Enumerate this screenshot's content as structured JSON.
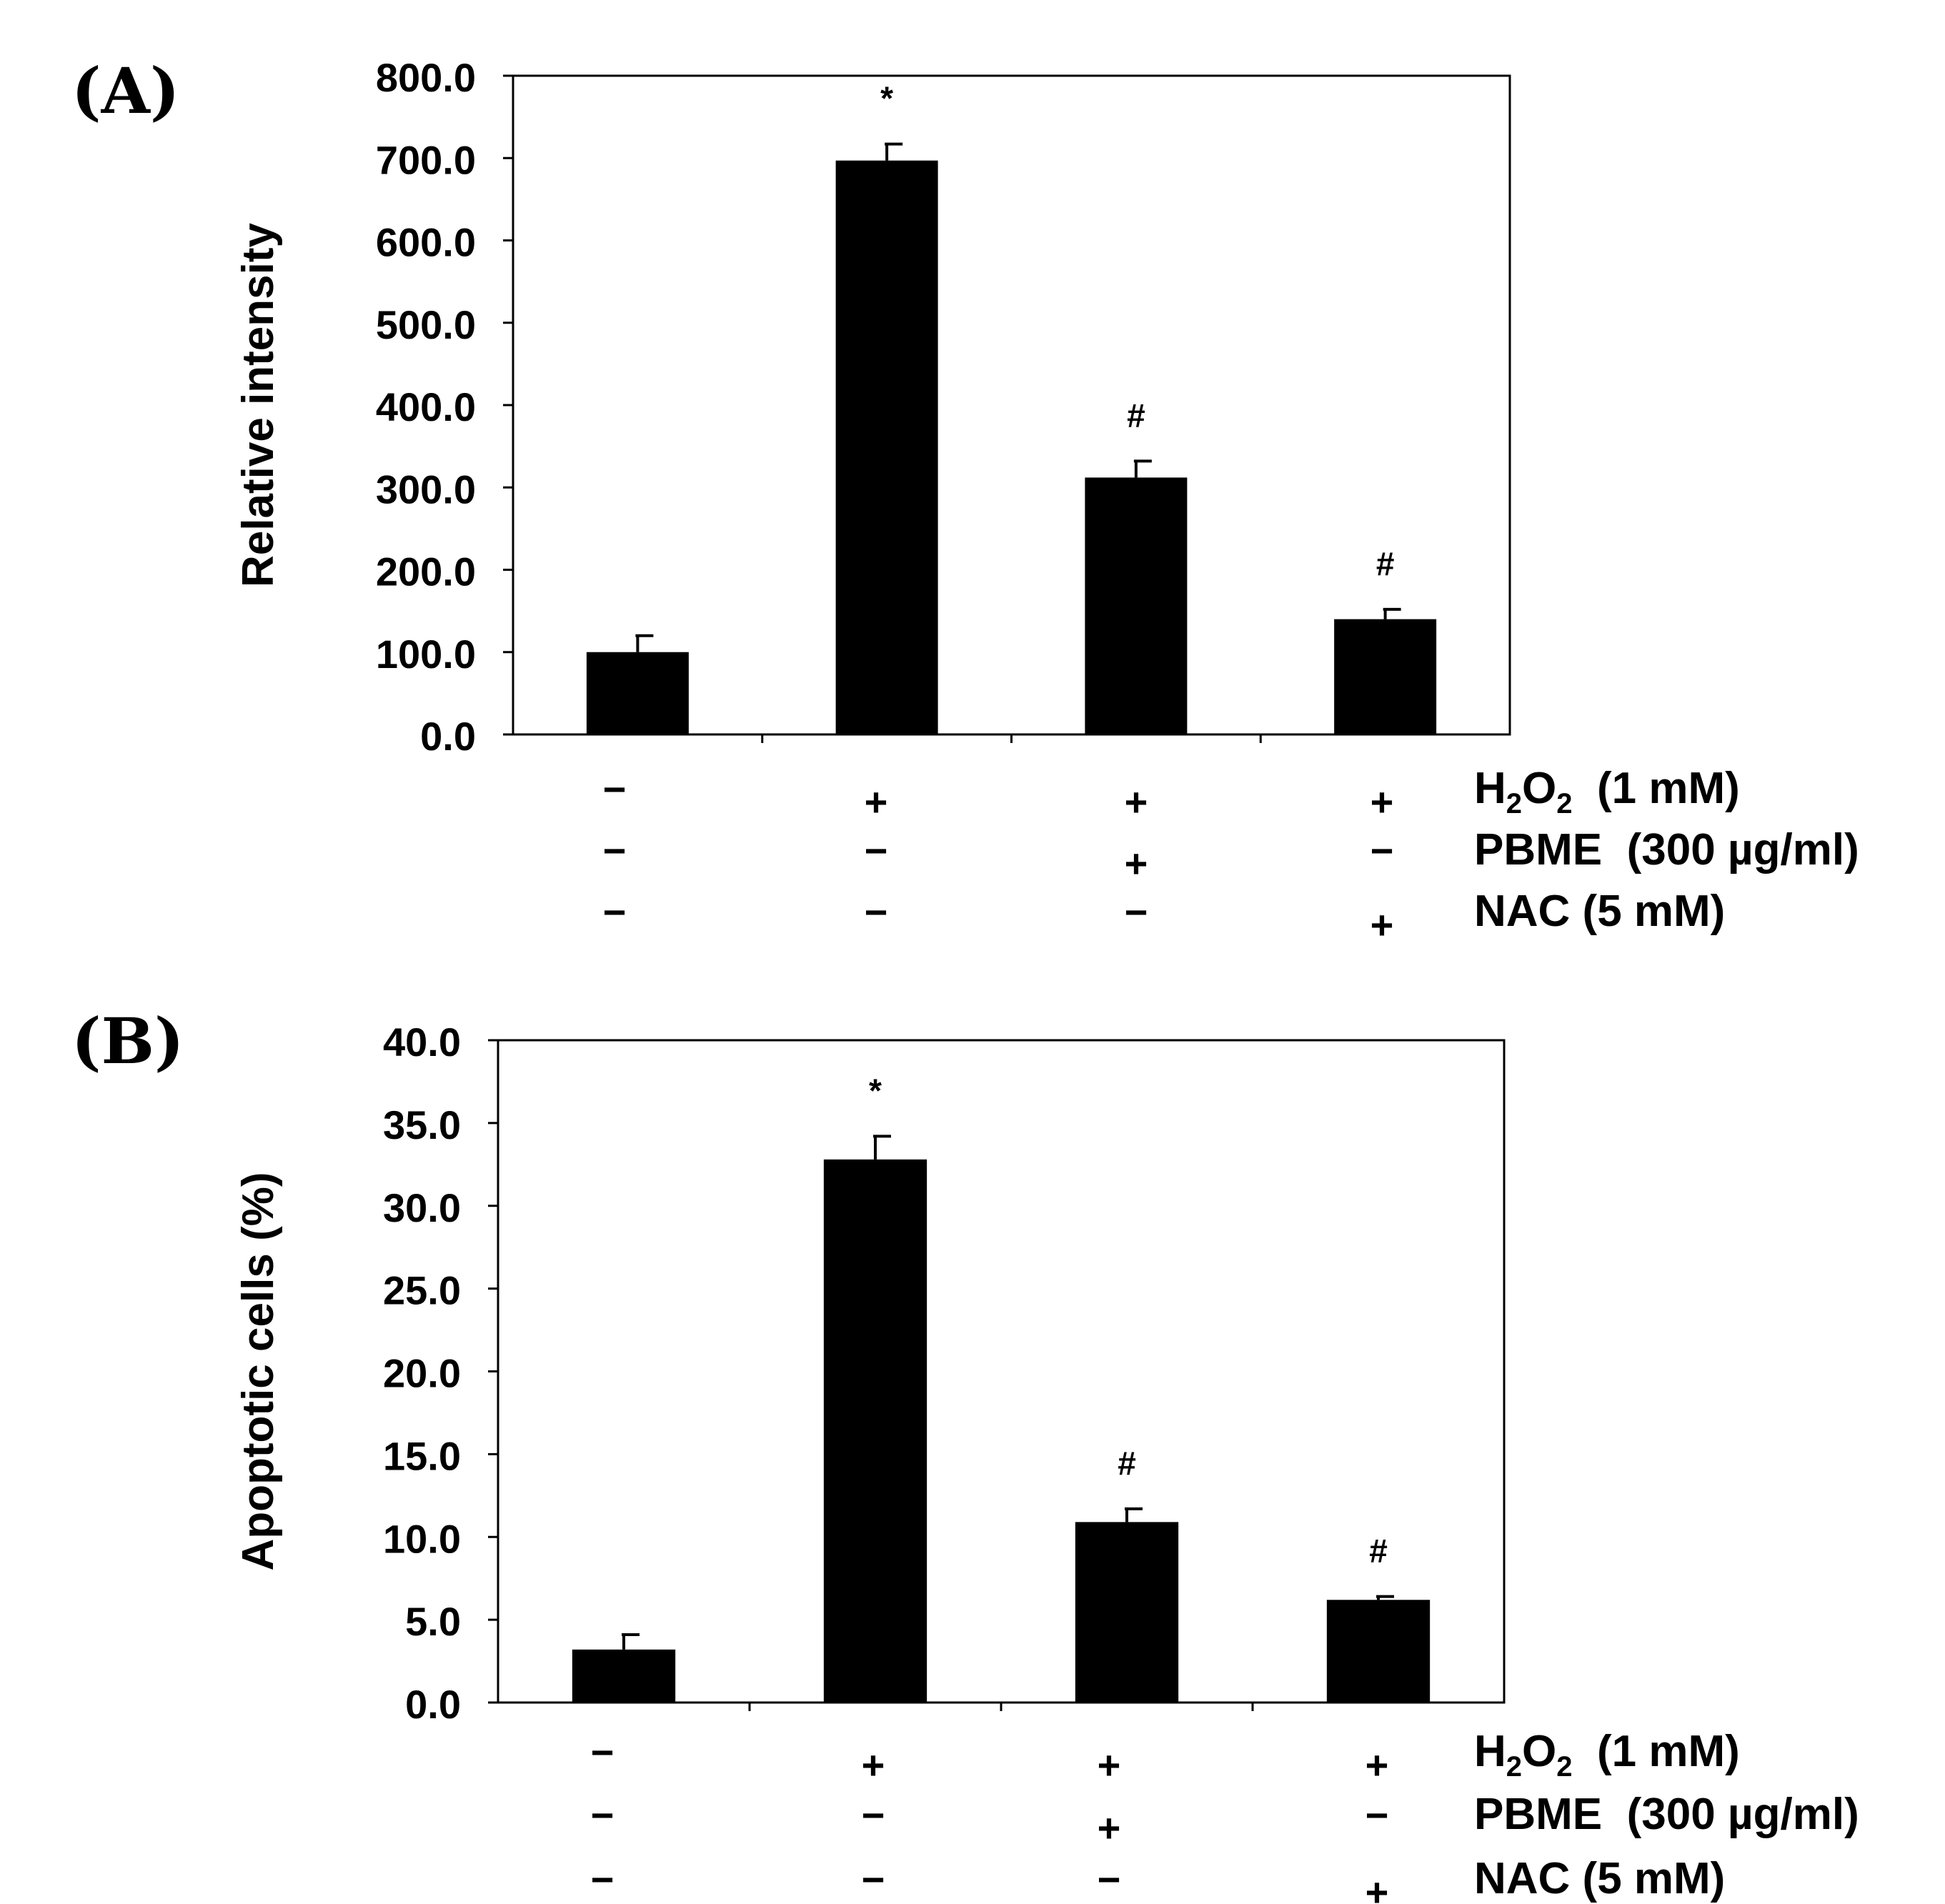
{
  "colors": {
    "bar": "#000000",
    "axis": "#000000",
    "background": "#ffffff"
  },
  "rows": [
    {
      "name": "H2O2",
      "label_base": "H",
      "label_sub1": "2",
      "label_mid": "O",
      "label_sub2": "2",
      "label_rest": "  (1 mM)",
      "marks": [
        "−",
        "+",
        "+",
        "+"
      ]
    },
    {
      "name": "PBME",
      "label": "PBME  (300 µg/ml)",
      "marks": [
        "−",
        "−",
        "+",
        "−"
      ]
    },
    {
      "name": "NAC",
      "label": "NAC (5 mM)",
      "marks": [
        "−",
        "−",
        "−",
        "+"
      ]
    }
  ],
  "chart_data": [
    {
      "panel": "(A)",
      "type": "bar",
      "ylabel": "Relative intensity",
      "xlabel": "",
      "ylim": [
        0,
        800
      ],
      "yticks": [
        0,
        100,
        200,
        300,
        400,
        500,
        600,
        700,
        800
      ],
      "ytick_labels": [
        "0.0",
        "100.0",
        "200.0",
        "300.0",
        "400.0",
        "500.0",
        "600.0",
        "700.0",
        "800.0"
      ],
      "categories": [
        "Control",
        "H2O2",
        "H2O2 + PBME",
        "H2O2 + NAC"
      ],
      "values": [
        100,
        697,
        312,
        140
      ],
      "errors": [
        20,
        20,
        20,
        12
      ],
      "annotations": [
        "",
        "*",
        "#",
        "#"
      ],
      "grid": false,
      "legend": "none"
    },
    {
      "panel": "(B)",
      "type": "bar",
      "ylabel": "Apoptotic cells (%)",
      "xlabel": "",
      "ylim": [
        0,
        40
      ],
      "yticks": [
        0,
        5,
        10,
        15,
        20,
        25,
        30,
        35,
        40
      ],
      "ytick_labels": [
        "0.0",
        "5.0",
        "10.0",
        "15.0",
        "20.0",
        "25.0",
        "30.0",
        "35.0",
        "40.0"
      ],
      "categories": [
        "Control",
        "H2O2",
        "H2O2 + PBME",
        "H2O2 + NAC"
      ],
      "values": [
        3.2,
        32.8,
        10.9,
        6.2
      ],
      "errors": [
        0.9,
        1.4,
        0.8,
        0.2
      ],
      "annotations": [
        "",
        "*",
        "#",
        "#"
      ],
      "grid": false,
      "legend": "none"
    }
  ]
}
